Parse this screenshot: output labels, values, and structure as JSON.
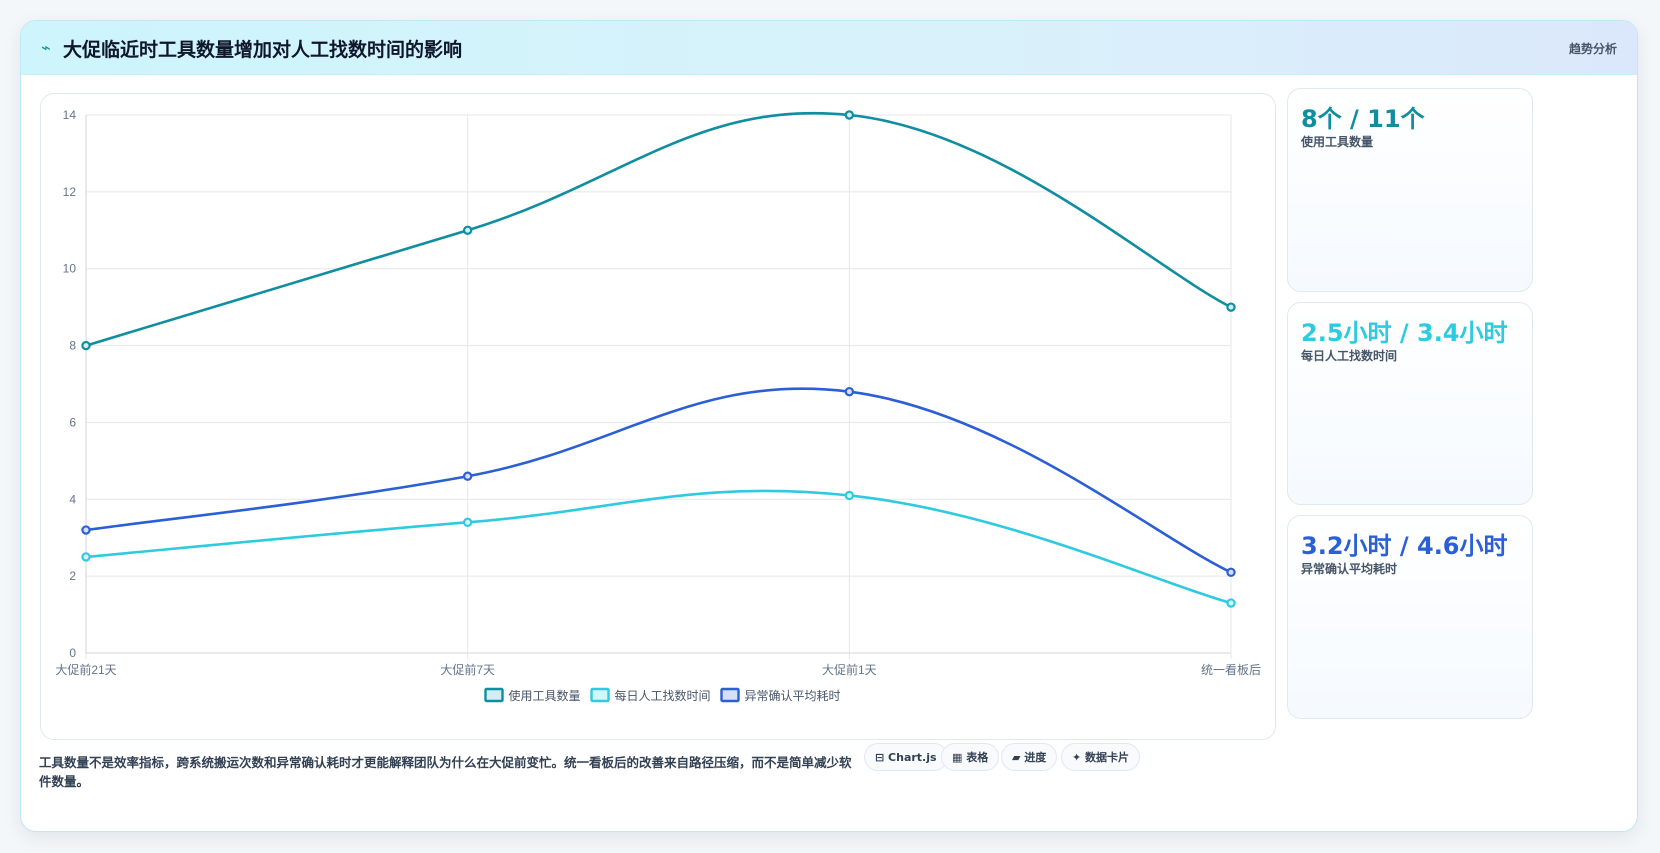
{
  "header": {
    "icon": "⌁",
    "title": "大促临近时工具数量增加对人工找数时间的影响",
    "badge": "趋势分析"
  },
  "chart_data": {
    "type": "line",
    "categories": [
      "大促前21天",
      "大促前7天",
      "大促前1天",
      "统一看板后"
    ],
    "ylim": [
      0,
      14
    ],
    "yticks": [
      0,
      2,
      4,
      6,
      8,
      10,
      12,
      14
    ],
    "grid": true,
    "legend_position": "bottom",
    "series": [
      {
        "name": "使用工具数量",
        "color": "#0e8ea0",
        "fill": "#d2eef2",
        "values": [
          8,
          11,
          14,
          9
        ]
      },
      {
        "name": "每日人工找数时间",
        "color": "#2ecbe0",
        "fill": "#d4f6fa",
        "values": [
          2.5,
          3.4,
          4.1,
          1.3
        ]
      },
      {
        "name": "异常确认平均耗时",
        "color": "#2b5fd6",
        "fill": "#d6e1f8",
        "values": [
          3.2,
          4.6,
          6.8,
          2.1
        ]
      }
    ]
  },
  "stats": [
    {
      "value": "8个 / 11个",
      "label": "使用工具数量",
      "color": "#0e8ea0"
    },
    {
      "value": "2.5小时 / 3.4小时",
      "label": "每日人工找数时间",
      "color": "#2ecbe0"
    },
    {
      "value": "3.2小时 / 4.6小时",
      "label": "异常确认平均耗时",
      "color": "#2b5fd6"
    }
  ],
  "footer": {
    "note": "工具数量不是效率指标，跨系统搬运次数和异常确认耗时才更能解释团队为什么在大促前变忙。统一看板后的改善来自路径压缩，而不是简单减少软件数量。",
    "pills": [
      {
        "label": "⊟ Chart.js",
        "icon": "chart-icon"
      },
      {
        "label": "▦ 表格",
        "icon": "table-icon"
      },
      {
        "label": "▰ 进度",
        "icon": "progress-icon"
      },
      {
        "label": "✦ 数据卡片",
        "icon": "sparkle-icon"
      }
    ]
  }
}
